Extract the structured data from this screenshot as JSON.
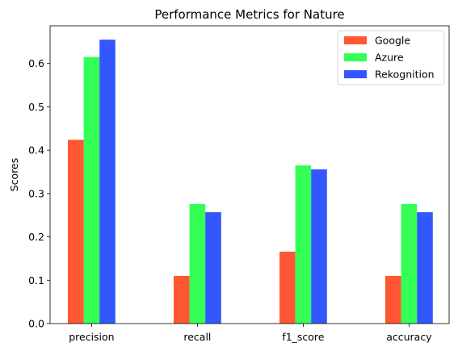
{
  "chart_data": {
    "type": "bar",
    "title": "Performance Metrics for Nature",
    "xlabel": "",
    "ylabel": "Scores",
    "categories": [
      "precision",
      "recall",
      "f1_score",
      "accuracy"
    ],
    "series": [
      {
        "name": "Google",
        "color": "#ff5733",
        "values": [
          0.424,
          0.11,
          0.166,
          0.11
        ]
      },
      {
        "name": "Azure",
        "color": "#33ff57",
        "values": [
          0.615,
          0.276,
          0.365,
          0.276
        ]
      },
      {
        "name": "Rekognition",
        "color": "#3357ff",
        "values": [
          0.655,
          0.257,
          0.356,
          0.257
        ]
      }
    ],
    "ylim": [
      0,
      0.687
    ],
    "yticks": [
      0.0,
      0.1,
      0.2,
      0.3,
      0.4,
      0.5,
      0.6
    ],
    "ytick_labels": [
      "0.0",
      "0.1",
      "0.2",
      "0.3",
      "0.4",
      "0.5",
      "0.6"
    ],
    "grid": false,
    "legend_position": "top-right"
  }
}
